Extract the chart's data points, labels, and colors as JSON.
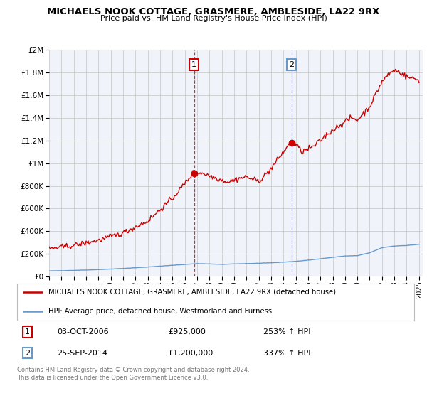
{
  "title": "MICHAELS NOOK COTTAGE, GRASMERE, AMBLESIDE, LA22 9RX",
  "subtitle": "Price paid vs. HM Land Registry's House Price Index (HPI)",
  "red_label": "MICHAELS NOOK COTTAGE, GRASMERE, AMBLESIDE, LA22 9RX (detached house)",
  "blue_label": "HPI: Average price, detached house, Westmorland and Furness",
  "transaction1_date": "03-OCT-2006",
  "transaction1_price": 925000,
  "transaction1_hpi": "253% ↑ HPI",
  "transaction2_date": "25-SEP-2014",
  "transaction2_price": 1200000,
  "transaction2_hpi": "337% ↑ HPI",
  "footer": "Contains HM Land Registry data © Crown copyright and database right 2024.\nThis data is licensed under the Open Government Licence v3.0.",
  "red_color": "#cc0000",
  "blue_color": "#6699cc",
  "vline1_color": "#cc0000",
  "vline2_color": "#9999cc",
  "background_color": "#ffffff",
  "plot_bg_color": "#f0f4fa",
  "grid_color": "#cccccc",
  "ylim": [
    0,
    2000000
  ],
  "year_start": 1995,
  "year_end": 2025
}
